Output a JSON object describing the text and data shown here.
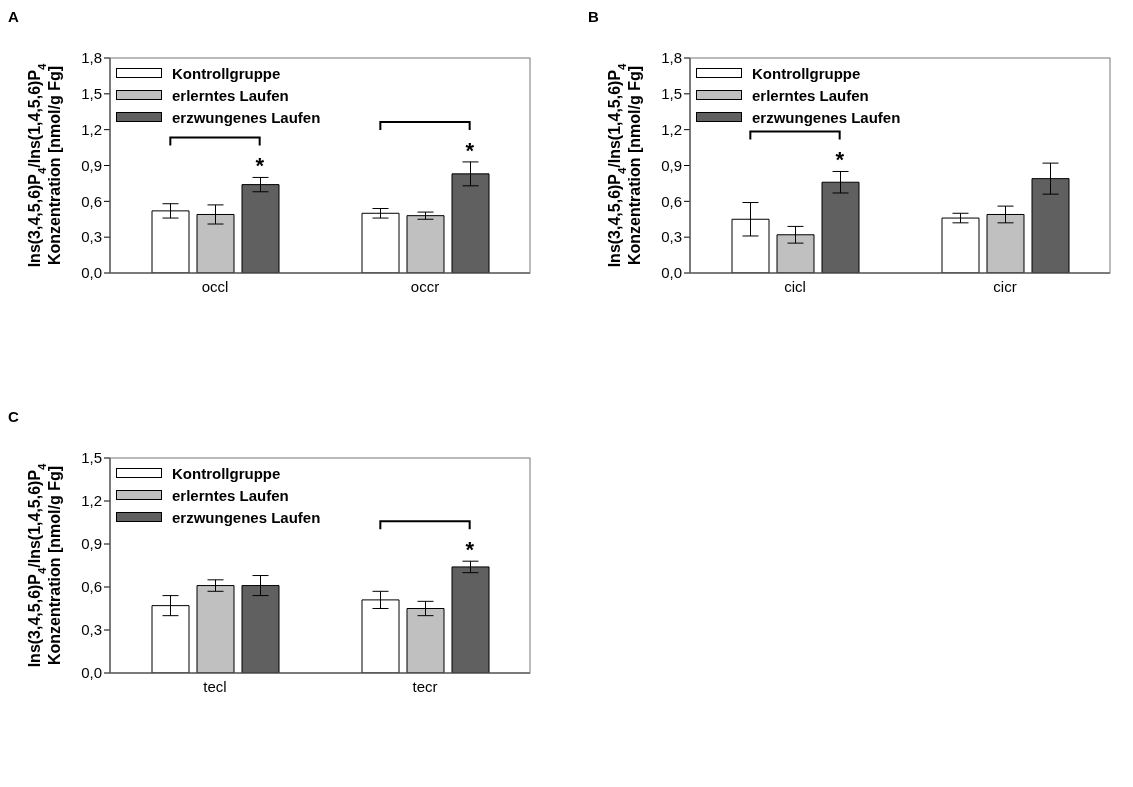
{
  "chart_data": [
    {
      "type": "bar",
      "title": "A",
      "ylabel": "Ins(3,4,5,6)P$_{4}$/Ins(1,4,5,6)P$_{4}$\nKonzentration [nmol/g Fg]",
      "categories": [
        "occl",
        "occr"
      ],
      "series": [
        {
          "name": "Kontrollgruppe",
          "color": "#ffffff",
          "values": [
            0.52,
            0.5
          ],
          "errors": [
            0.06,
            0.04
          ]
        },
        {
          "name": "erlerntes Laufen",
          "color": "#c0c0c0",
          "values": [
            0.49,
            0.48
          ],
          "errors": [
            0.08,
            0.03
          ]
        },
        {
          "name": "erzwungenes Laufen",
          "color": "#606060",
          "values": [
            0.74,
            0.83
          ],
          "errors": [
            0.06,
            0.1
          ]
        }
      ],
      "ylim": [
        0,
        1.8
      ],
      "yticks": [
        {
          "value": 0,
          "label": "0,0"
        },
        {
          "value": 0.3,
          "label": "0,3"
        },
        {
          "value": 0.6,
          "label": "0,6"
        },
        {
          "value": 0.9,
          "label": "0,9"
        },
        {
          "value": 1.2,
          "label": "1,2"
        },
        {
          "value": 1.5,
          "label": "1,5"
        },
        {
          "value": 1.8,
          "label": "1,8"
        }
      ],
      "legend": "top left",
      "grid": false,
      "annotations": [
        "*",
        "*"
      ]
    },
    {
      "type": "bar",
      "title": "B",
      "ylabel": "Ins(3,4,5,6)P$_{4}$/Ins(1,4,5,6)P$_{4}$\nKonzentration [nmol/g Fg]",
      "categories": [
        "cicl",
        "cicr"
      ],
      "series": [
        {
          "name": "Kontrollgruppe",
          "color": "#ffffff",
          "values": [
            0.45,
            0.46
          ],
          "errors": [
            0.14,
            0.04
          ]
        },
        {
          "name": "erlerntes Laufen",
          "color": "#c0c0c0",
          "values": [
            0.32,
            0.49
          ],
          "errors": [
            0.07,
            0.07
          ]
        },
        {
          "name": "erzwungenes Laufen",
          "color": "#606060",
          "values": [
            0.76,
            0.79
          ],
          "errors": [
            0.09,
            0.13
          ]
        }
      ],
      "ylim": [
        0,
        1.8
      ],
      "yticks": [
        {
          "value": 0,
          "label": "0,0"
        },
        {
          "value": 0.3,
          "label": "0,3"
        },
        {
          "value": 0.6,
          "label": "0,6"
        },
        {
          "value": 0.9,
          "label": "0,9"
        },
        {
          "value": 1.2,
          "label": "1,2"
        },
        {
          "value": 1.5,
          "label": "1,5"
        },
        {
          "value": 1.8,
          "label": "1,8"
        }
      ],
      "legend": "top left",
      "grid": false,
      "annotations": [
        "*"
      ]
    },
    {
      "type": "bar",
      "title": "C",
      "ylabel": "Ins(3,4,5,6)P$_{4}$/Ins(1,4,5,6)P$_{4}$\nKonzentration [nmol/g Fg]",
      "categories": [
        "tecl",
        "tecr"
      ],
      "series": [
        {
          "name": "Kontrollgruppe",
          "color": "#ffffff",
          "values": [
            0.47,
            0.51
          ],
          "errors": [
            0.07,
            0.06
          ]
        },
        {
          "name": "erlerntes Laufen",
          "color": "#c0c0c0",
          "values": [
            0.61,
            0.45
          ],
          "errors": [
            0.04,
            0.05
          ]
        },
        {
          "name": "erzwungenes Laufen",
          "color": "#606060",
          "values": [
            0.61,
            0.74
          ],
          "errors": [
            0.07,
            0.04
          ]
        }
      ],
      "ylim": [
        0,
        1.5
      ],
      "yticks": [
        {
          "value": 0,
          "label": "0,0"
        },
        {
          "value": 0.3,
          "label": "0,3"
        },
        {
          "value": 0.6,
          "label": "0,6"
        },
        {
          "value": 0.9,
          "label": "0,9"
        },
        {
          "value": 1.2,
          "label": "1,2"
        },
        {
          "value": 1.5,
          "label": "1,5"
        }
      ],
      "legend": "top left",
      "grid": false,
      "annotations": [
        "*"
      ]
    }
  ]
}
